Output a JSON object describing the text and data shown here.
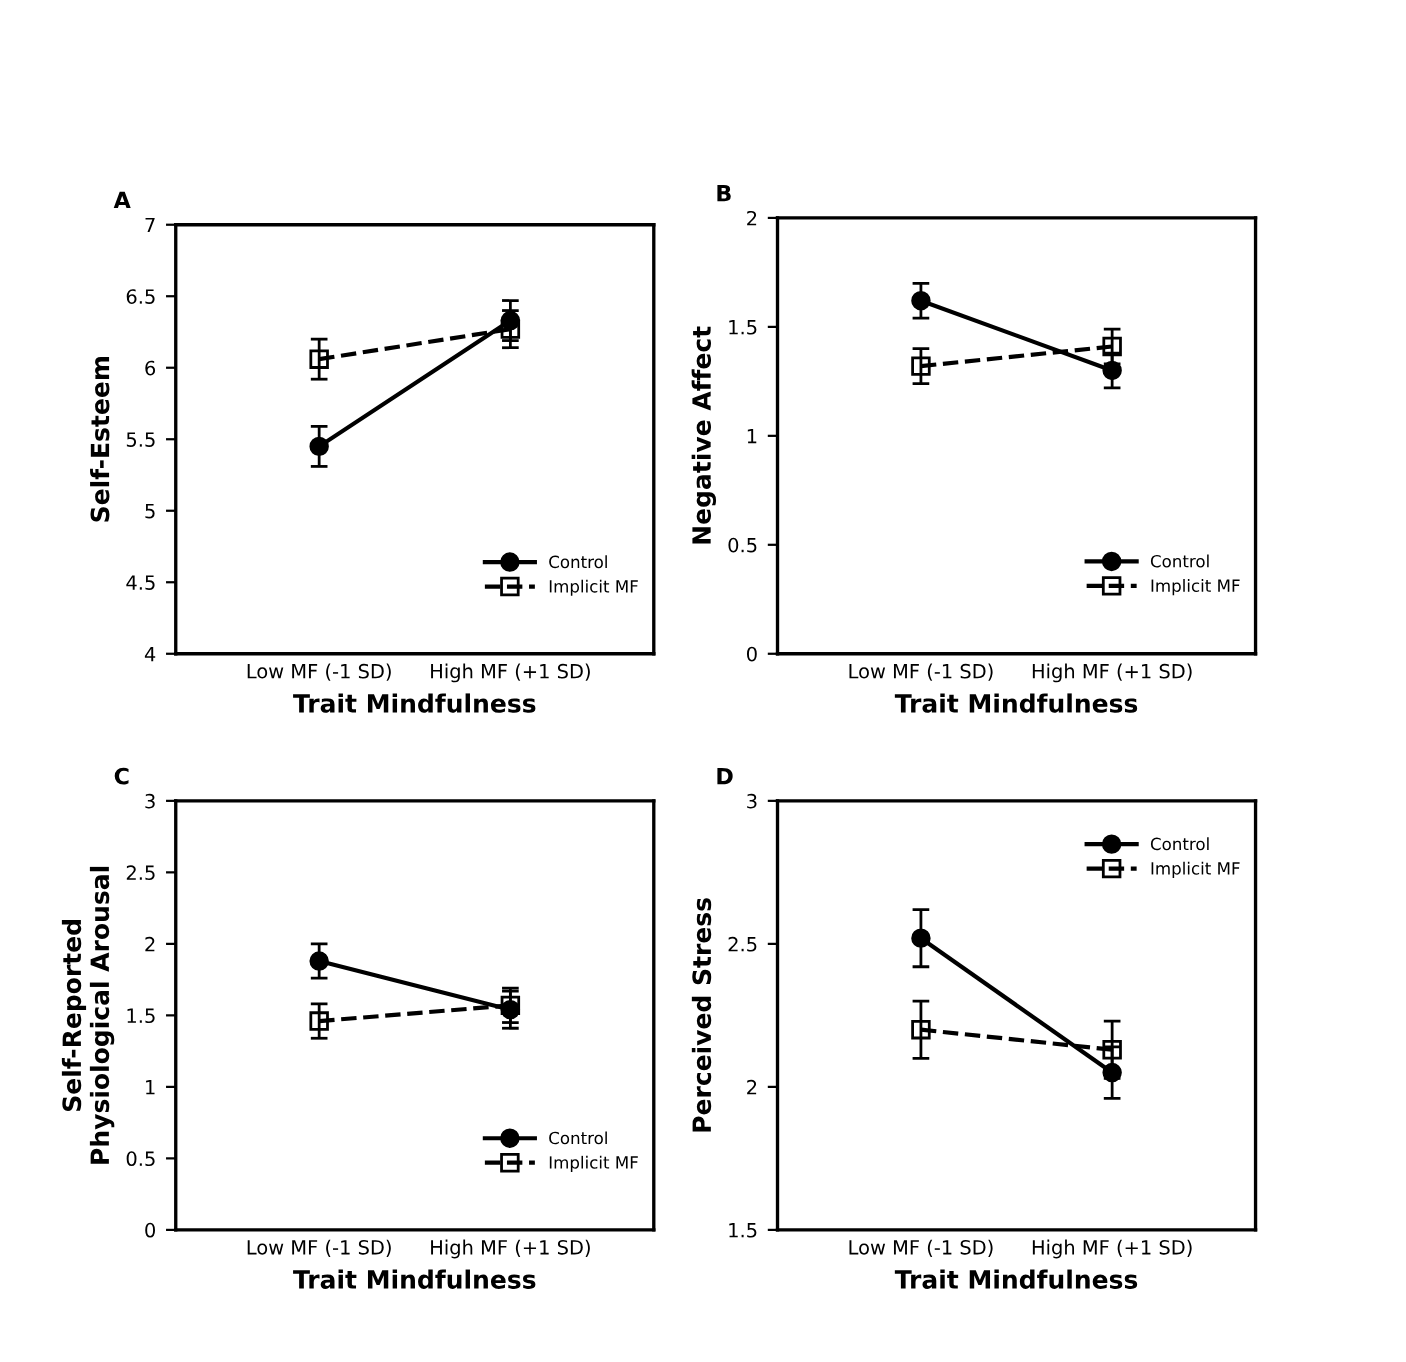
{
  "chart_data": [
    {
      "type": "line",
      "title": "A",
      "xlabel": "Trait Mindfulness",
      "ylabel": "Self-Esteem",
      "categories": [
        "Low MF (-1 SD)",
        "High MF (+1 SD)"
      ],
      "ylim": [
        4,
        7
      ],
      "yticks": [
        4,
        4.5,
        5,
        5.5,
        6,
        6.5,
        7
      ],
      "legend": "bottom right",
      "series": [
        {
          "name": "Control",
          "color": "#000000",
          "marker": "circle",
          "line_style": "solid",
          "values": [
            5.45,
            6.33
          ],
          "errors": [
            0.14,
            0.14
          ]
        },
        {
          "name": "Implicit MF",
          "color": "#000000",
          "marker": "square",
          "line_style": "dashed",
          "values": [
            6.06,
            6.27
          ],
          "errors": [
            0.14,
            0.13
          ]
        }
      ]
    },
    {
      "type": "line",
      "title": "B",
      "xlabel": "Trait Mindfulness",
      "ylabel": "Negative Affect",
      "categories": [
        "Low MF (-1 SD)",
        "High MF (+1 SD)"
      ],
      "ylim": [
        0,
        2
      ],
      "yticks": [
        0,
        0.5,
        1,
        1.5,
        2
      ],
      "legend": "bottom right",
      "series": [
        {
          "name": "Control",
          "color": "#000000",
          "marker": "circle",
          "line_style": "solid",
          "values": [
            1.62,
            1.3
          ],
          "errors": [
            0.08,
            0.08
          ]
        },
        {
          "name": "Implicit MF",
          "color": "#000000",
          "marker": "square",
          "line_style": "dashed",
          "values": [
            1.32,
            1.41
          ],
          "errors": [
            0.08,
            0.08
          ]
        }
      ]
    },
    {
      "type": "line",
      "title": "C",
      "xlabel": "Trait Mindfulness",
      "ylabel": "Self-Reported\nPhysiological Arousal",
      "categories": [
        "Low MF (-1 SD)",
        "High MF (+1 SD)"
      ],
      "ylim": [
        0,
        3
      ],
      "yticks": [
        0,
        0.5,
        1,
        1.5,
        2,
        2.5,
        3
      ],
      "legend": "bottom right",
      "series": [
        {
          "name": "Control",
          "color": "#000000",
          "marker": "circle",
          "line_style": "solid",
          "values": [
            1.88,
            1.54
          ],
          "errors": [
            0.12,
            0.13
          ]
        },
        {
          "name": "Implicit MF",
          "color": "#000000",
          "marker": "square",
          "line_style": "dashed",
          "values": [
            1.46,
            1.57
          ],
          "errors": [
            0.12,
            0.12
          ]
        }
      ]
    },
    {
      "type": "line",
      "title": "D",
      "xlabel": "Trait Mindfulness",
      "ylabel": "Perceived Stress",
      "categories": [
        "Low MF (-1 SD)",
        "High MF (+1 SD)"
      ],
      "ylim": [
        1.5,
        3
      ],
      "yticks": [
        1.5,
        2,
        2.5,
        3
      ],
      "legend": "top right",
      "series": [
        {
          "name": "Control",
          "color": "#000000",
          "marker": "circle",
          "line_style": "solid",
          "values": [
            2.52,
            2.05
          ],
          "errors": [
            0.1,
            0.09
          ]
        },
        {
          "name": "Implicit MF",
          "color": "#000000",
          "marker": "square",
          "line_style": "dashed",
          "values": [
            2.2,
            2.13
          ],
          "errors": [
            0.1,
            0.1
          ]
        }
      ]
    }
  ]
}
